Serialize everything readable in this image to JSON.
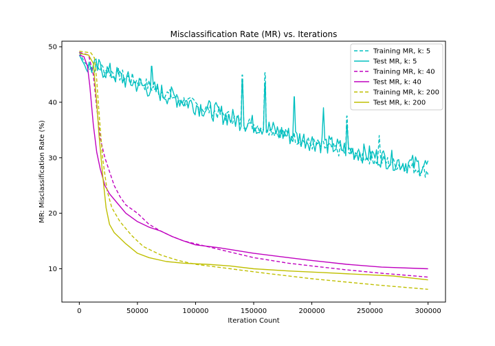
{
  "chart_data": {
    "type": "line",
    "title": "Misclassification Rate (MR) vs. Iterations",
    "xlabel": "Iteration Count",
    "ylabel": "MR: Misclassification Rate (%)",
    "xlim": [
      -15000,
      315000
    ],
    "ylim": [
      4,
      51
    ],
    "xticks": [
      0,
      50000,
      100000,
      150000,
      200000,
      250000,
      300000
    ],
    "yticks": [
      10,
      20,
      30,
      40,
      50
    ],
    "grid": false,
    "legend_position": "top-right",
    "series": [
      {
        "name": "Training MR, k: 5",
        "color": "#00bfbf",
        "dash": "dashed",
        "noise": 1.2,
        "spikes": [
          [
            140000,
            44.9
          ],
          [
            160000,
            45.3
          ],
          [
            230000,
            37.5
          ],
          [
            258000,
            34.0
          ]
        ],
        "points": [
          [
            0,
            49.0
          ],
          [
            5000,
            47.0
          ],
          [
            20000,
            46.0
          ],
          [
            40000,
            44.5
          ],
          [
            60000,
            43.0
          ],
          [
            80000,
            41.0
          ],
          [
            100000,
            39.5
          ],
          [
            120000,
            38.0
          ],
          [
            140000,
            36.5
          ],
          [
            160000,
            35.5
          ],
          [
            180000,
            34.0
          ],
          [
            200000,
            32.5
          ],
          [
            220000,
            31.5
          ],
          [
            240000,
            30.5
          ],
          [
            260000,
            29.5
          ],
          [
            280000,
            28.5
          ],
          [
            300000,
            27.5
          ]
        ]
      },
      {
        "name": "Test MR, k: 5",
        "color": "#00bfbf",
        "dash": "solid",
        "noise": 1.8,
        "spikes": [
          [
            62000,
            46.5
          ],
          [
            140000,
            44.0
          ],
          [
            160000,
            43.5
          ],
          [
            185000,
            41.0
          ],
          [
            210000,
            39.0
          ],
          [
            230000,
            36.0
          ]
        ],
        "points": [
          [
            0,
            48.5
          ],
          [
            5000,
            46.5
          ],
          [
            20000,
            46.0
          ],
          [
            40000,
            44.0
          ],
          [
            60000,
            42.5
          ],
          [
            80000,
            41.0
          ],
          [
            100000,
            39.5
          ],
          [
            120000,
            38.0
          ],
          [
            140000,
            36.5
          ],
          [
            160000,
            35.5
          ],
          [
            180000,
            34.0
          ],
          [
            200000,
            33.0
          ],
          [
            220000,
            32.0
          ],
          [
            240000,
            31.0
          ],
          [
            260000,
            30.0
          ],
          [
            280000,
            29.0
          ],
          [
            300000,
            28.5
          ]
        ]
      },
      {
        "name": "Training MR, k: 40",
        "color": "#bf00bf",
        "dash": "dashed",
        "noise": 0,
        "spikes": [],
        "points": [
          [
            0,
            49.0
          ],
          [
            8000,
            48.5
          ],
          [
            12000,
            45.0
          ],
          [
            15000,
            39.0
          ],
          [
            18000,
            33.5
          ],
          [
            22000,
            30.0
          ],
          [
            26000,
            27.5
          ],
          [
            30000,
            25.0
          ],
          [
            35000,
            23.0
          ],
          [
            40000,
            21.5
          ],
          [
            50000,
            20.0
          ],
          [
            60000,
            18.0
          ],
          [
            70000,
            16.8
          ],
          [
            80000,
            15.8
          ],
          [
            90000,
            15.0
          ],
          [
            100000,
            14.5
          ],
          [
            120000,
            13.5
          ],
          [
            150000,
            12.0
          ],
          [
            180000,
            11.0
          ],
          [
            200000,
            10.5
          ],
          [
            230000,
            9.8
          ],
          [
            260000,
            9.2
          ],
          [
            300000,
            8.5
          ]
        ]
      },
      {
        "name": "Test MR, k: 40",
        "color": "#bf00bf",
        "dash": "solid",
        "noise": 0,
        "spikes": [],
        "points": [
          [
            0,
            48.5
          ],
          [
            4000,
            48.2
          ],
          [
            7000,
            46.5
          ],
          [
            9000,
            43.0
          ],
          [
            12000,
            36.0
          ],
          [
            15000,
            31.0
          ],
          [
            18000,
            28.0
          ],
          [
            22000,
            25.0
          ],
          [
            26000,
            23.5
          ],
          [
            32000,
            22.0
          ],
          [
            40000,
            20.0
          ],
          [
            50000,
            18.5
          ],
          [
            60000,
            17.5
          ],
          [
            70000,
            16.8
          ],
          [
            80000,
            15.8
          ],
          [
            90000,
            15.0
          ],
          [
            100000,
            14.3
          ],
          [
            120000,
            13.8
          ],
          [
            150000,
            12.8
          ],
          [
            180000,
            12.0
          ],
          [
            200000,
            11.5
          ],
          [
            230000,
            10.8
          ],
          [
            260000,
            10.3
          ],
          [
            300000,
            10.0
          ]
        ]
      },
      {
        "name": "Training MR, k: 200",
        "color": "#bfbf00",
        "dash": "dashed",
        "noise": 0,
        "spikes": [],
        "points": [
          [
            0,
            49.2
          ],
          [
            10000,
            48.9
          ],
          [
            13000,
            48.0
          ],
          [
            15000,
            44.0
          ],
          [
            17000,
            38.0
          ],
          [
            20000,
            30.0
          ],
          [
            24000,
            24.0
          ],
          [
            28000,
            21.0
          ],
          [
            35000,
            18.5
          ],
          [
            45000,
            16.0
          ],
          [
            55000,
            14.0
          ],
          [
            70000,
            12.5
          ],
          [
            85000,
            11.5
          ],
          [
            100000,
            10.8
          ],
          [
            130000,
            10.0
          ],
          [
            160000,
            9.2
          ],
          [
            200000,
            8.2
          ],
          [
            230000,
            7.6
          ],
          [
            260000,
            7.0
          ],
          [
            300000,
            6.3
          ]
        ]
      },
      {
        "name": "Test MR, k: 200",
        "color": "#bfbf00",
        "dash": "solid",
        "noise": 0,
        "spikes": [],
        "points": [
          [
            0,
            48.8
          ],
          [
            8000,
            48.5
          ],
          [
            12000,
            47.0
          ],
          [
            15000,
            40.0
          ],
          [
            17000,
            34.0
          ],
          [
            20000,
            27.0
          ],
          [
            23000,
            21.0
          ],
          [
            26000,
            18.0
          ],
          [
            30000,
            16.5
          ],
          [
            40000,
            14.5
          ],
          [
            50000,
            12.8
          ],
          [
            60000,
            12.0
          ],
          [
            75000,
            11.3
          ],
          [
            90000,
            11.0
          ],
          [
            110000,
            10.8
          ],
          [
            130000,
            10.5
          ],
          [
            150000,
            10.0
          ],
          [
            180000,
            9.6
          ],
          [
            210000,
            9.3
          ],
          [
            240000,
            9.0
          ],
          [
            270000,
            8.7
          ],
          [
            300000,
            8.0
          ]
        ]
      }
    ]
  }
}
